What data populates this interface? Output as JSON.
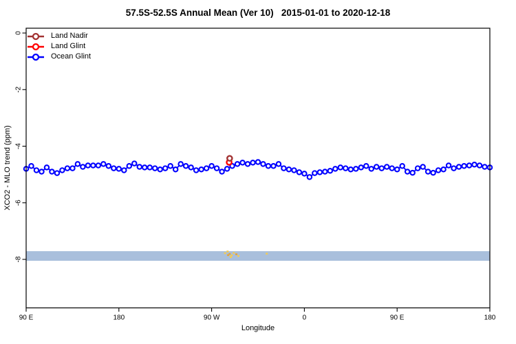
{
  "chart": {
    "title": "57.5S-52.5S Annual Mean (Ver 10)   2015-01-01 to 2020-12-18"
  },
  "legend": {
    "items": [
      {
        "label": "Land Nadir",
        "color": "#A23232"
      },
      {
        "label": "Land Glint",
        "color": "#FF0000"
      },
      {
        "label": "Ocean Glint",
        "color": "#0000FF"
      }
    ]
  },
  "chart_data": {
    "type": "line",
    "title": "57.5S-52.5S Annual Mean (Ver 10)   2015-01-01 to 2020-12-18",
    "xlabel": "Longitude",
    "ylabel": "XCO2 - MLO trend (ppm)",
    "xlim": [
      90,
      540
    ],
    "ylim": [
      -9.7,
      0.2
    ],
    "grid": false,
    "legend_position": "top-left",
    "x_ticks": [
      {
        "pos": 90,
        "label": "90 E"
      },
      {
        "pos": 180,
        "label": "180"
      },
      {
        "pos": 270,
        "label": "90 W"
      },
      {
        "pos": 360,
        "label": "0"
      },
      {
        "pos": 450,
        "label": "90 E"
      },
      {
        "pos": 540,
        "label": "180"
      }
    ],
    "y_ticks": [
      {
        "pos": 0,
        "label": "0"
      },
      {
        "pos": -2,
        "label": "-2"
      },
      {
        "pos": -4,
        "label": "-4"
      },
      {
        "pos": -6,
        "label": "-6"
      },
      {
        "pos": -8,
        "label": "-8"
      }
    ],
    "band": {
      "y_from": -8.05,
      "y_to": -7.71,
      "color": "#A9BFDC"
    },
    "specks": {
      "color1": "#F2CB57",
      "color2": "#E5A63E",
      "points": [
        [
          283,
          -7.78
        ],
        [
          285.5,
          -7.72
        ],
        [
          287.5,
          -7.81
        ],
        [
          289.5,
          -7.86
        ],
        [
          291.5,
          -7.77
        ],
        [
          294,
          -7.82
        ],
        [
          296,
          -7.88
        ],
        [
          288.5,
          -7.92
        ],
        [
          286,
          -7.85
        ],
        [
          323.5,
          -7.8
        ]
      ]
    },
    "series": [
      {
        "name": "Land Nadir",
        "color": "#A23232",
        "marker": "open-circle",
        "points": [
          [
            287.5,
            -4.43
          ]
        ]
      },
      {
        "name": "Land Glint",
        "color": "#FF0000",
        "marker": "open-circle",
        "points": [
          [
            287,
            -4.57
          ]
        ]
      },
      {
        "name": "Ocean Glint",
        "color": "#0000FF",
        "marker": "open-circle",
        "x_start": 90,
        "x_step": 5,
        "values": [
          -4.8,
          -4.7,
          -4.85,
          -4.9,
          -4.75,
          -4.9,
          -4.95,
          -4.85,
          -4.78,
          -4.78,
          -4.63,
          -4.73,
          -4.68,
          -4.68,
          -4.68,
          -4.63,
          -4.7,
          -4.78,
          -4.8,
          -4.85,
          -4.7,
          -4.61,
          -4.73,
          -4.75,
          -4.75,
          -4.78,
          -4.82,
          -4.78,
          -4.7,
          -4.82,
          -4.63,
          -4.7,
          -4.75,
          -4.85,
          -4.82,
          -4.78,
          -4.7,
          -4.78,
          -4.9,
          -4.8,
          -4.7,
          -4.63,
          -4.58,
          -4.63,
          -4.58,
          -4.56,
          -4.63,
          -4.7,
          -4.7,
          -4.63,
          -4.78,
          -4.82,
          -4.85,
          -4.92,
          -4.97,
          -5.09,
          -4.95,
          -4.92,
          -4.9,
          -4.87,
          -4.8,
          -4.75,
          -4.78,
          -4.82,
          -4.8,
          -4.75,
          -4.7,
          -4.8,
          -4.73,
          -4.78,
          -4.73,
          -4.78,
          -4.82,
          -4.7,
          -4.9,
          -4.94,
          -4.78,
          -4.73,
          -4.9,
          -4.94,
          -4.85,
          -4.82,
          -4.68,
          -4.78,
          -4.73,
          -4.7,
          -4.68,
          -4.65,
          -4.68,
          -4.73,
          -4.75
        ]
      }
    ]
  }
}
